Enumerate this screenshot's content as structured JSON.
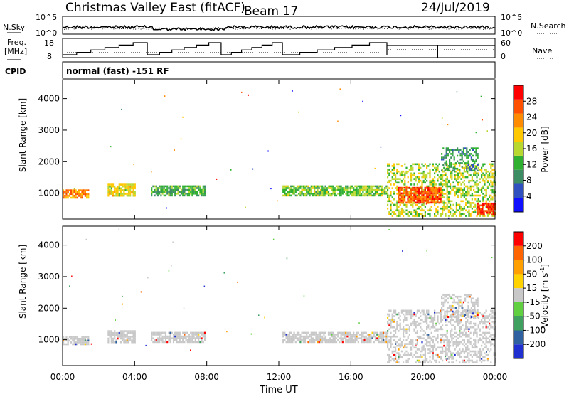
{
  "header": {
    "site": "Christmas Valley East (fitACF)",
    "beam": "Beam 17",
    "date": "24/Jul/2019"
  },
  "top_panels": {
    "nsky_label": "N.Sky",
    "nsky_ticks": [
      "10^5",
      "10^0"
    ],
    "nsearch_label": "N.Search",
    "nsearch_ticks": [
      "10^5",
      "10^0"
    ],
    "freq_label_1": "Freq.",
    "freq_label_2": "[MHz]",
    "freq_ticks": [
      "18",
      "8"
    ],
    "nave_label": "Nave",
    "nave_ticks": [
      "60",
      "0"
    ],
    "cpid_label": "CPID",
    "cpid_value": "normal (fast) -151 RF"
  },
  "chart_data": [
    {
      "type": "heatmap",
      "panel": "power",
      "xlabel": "",
      "ylabel": "Slant Range [km]",
      "x_ticks": [
        "00:00",
        "04:00",
        "08:00",
        "12:00",
        "16:00",
        "20:00",
        "00:00"
      ],
      "x_range_hours": [
        0,
        24
      ],
      "y_ticks": [
        "1000",
        "2000",
        "3000",
        "4000"
      ],
      "ylim": [
        180,
        4600
      ],
      "colorbar_label": "Power [dB]",
      "colorbar_ticks": [
        "4",
        "8",
        "12",
        "16",
        "20",
        "24",
        "28"
      ],
      "colorbar_range": [
        0,
        32
      ],
      "colors": [
        "#1010ff",
        "#3050c0",
        "#3c8c64",
        "#2fb030",
        "#b8d830",
        "#ffc800",
        "#ff8c00",
        "#ff5000",
        "#ff0000"
      ],
      "regions": [
        {
          "t0": 0.0,
          "t1": 1.4,
          "r0": 880,
          "r1": 1120,
          "level": 24
        },
        {
          "t0": 2.5,
          "t1": 4.0,
          "r0": 900,
          "r1": 1300,
          "level": 18
        },
        {
          "t0": 4.9,
          "t1": 7.9,
          "r0": 900,
          "r1": 1250,
          "level": 12
        },
        {
          "t0": 12.2,
          "t1": 18.0,
          "r0": 900,
          "r1": 1250,
          "level": 14
        },
        {
          "t0": 18.0,
          "t1": 24.0,
          "r0": 300,
          "r1": 1950,
          "level": 16
        },
        {
          "t0": 18.6,
          "t1": 21.0,
          "r0": 700,
          "r1": 1200,
          "level": 26
        },
        {
          "t0": 21.0,
          "t1": 23.0,
          "r0": 1700,
          "r1": 2450,
          "level": 10
        },
        {
          "t0": 23.0,
          "t1": 24.0,
          "r0": 300,
          "r1": 700,
          "level": 28
        }
      ]
    },
    {
      "type": "heatmap",
      "panel": "velocity",
      "xlabel": "Time UT",
      "ylabel": "Slant Range [km]",
      "x_ticks": [
        "00:00",
        "04:00",
        "08:00",
        "12:00",
        "16:00",
        "20:00",
        "00:00"
      ],
      "x_range_hours": [
        0,
        24
      ],
      "y_ticks": [
        "1000",
        "2000",
        "3000",
        "4000"
      ],
      "ylim": [
        180,
        4600
      ],
      "colorbar_label_main": "Velocity [m s",
      "colorbar_label_sup": "-1",
      "colorbar_label_end": "]",
      "colorbar_ticks": [
        "200",
        "100",
        "50",
        "15",
        "-15",
        "-50",
        "-100",
        "-200"
      ],
      "colors": [
        "#2030d0",
        "#2f60a0",
        "#3fa060",
        "#60d040",
        "#c8c8c8",
        "#ffd200",
        "#ffa000",
        "#ff6400",
        "#ff0000"
      ],
      "regions": [
        {
          "t0": 0.0,
          "t1": 1.4,
          "r0": 880,
          "r1": 1120,
          "level": 4
        },
        {
          "t0": 2.5,
          "t1": 4.0,
          "r0": 900,
          "r1": 1300,
          "level": 4
        },
        {
          "t0": 4.9,
          "t1": 7.9,
          "r0": 900,
          "r1": 1250,
          "level": 4
        },
        {
          "t0": 12.2,
          "t1": 18.0,
          "r0": 900,
          "r1": 1250,
          "level": 4
        },
        {
          "t0": 18.0,
          "t1": 24.0,
          "r0": 300,
          "r1": 1950,
          "level": 4
        },
        {
          "t0": 21.0,
          "t1": 23.0,
          "r0": 1700,
          "r1": 2450,
          "level": 4
        }
      ]
    }
  ]
}
